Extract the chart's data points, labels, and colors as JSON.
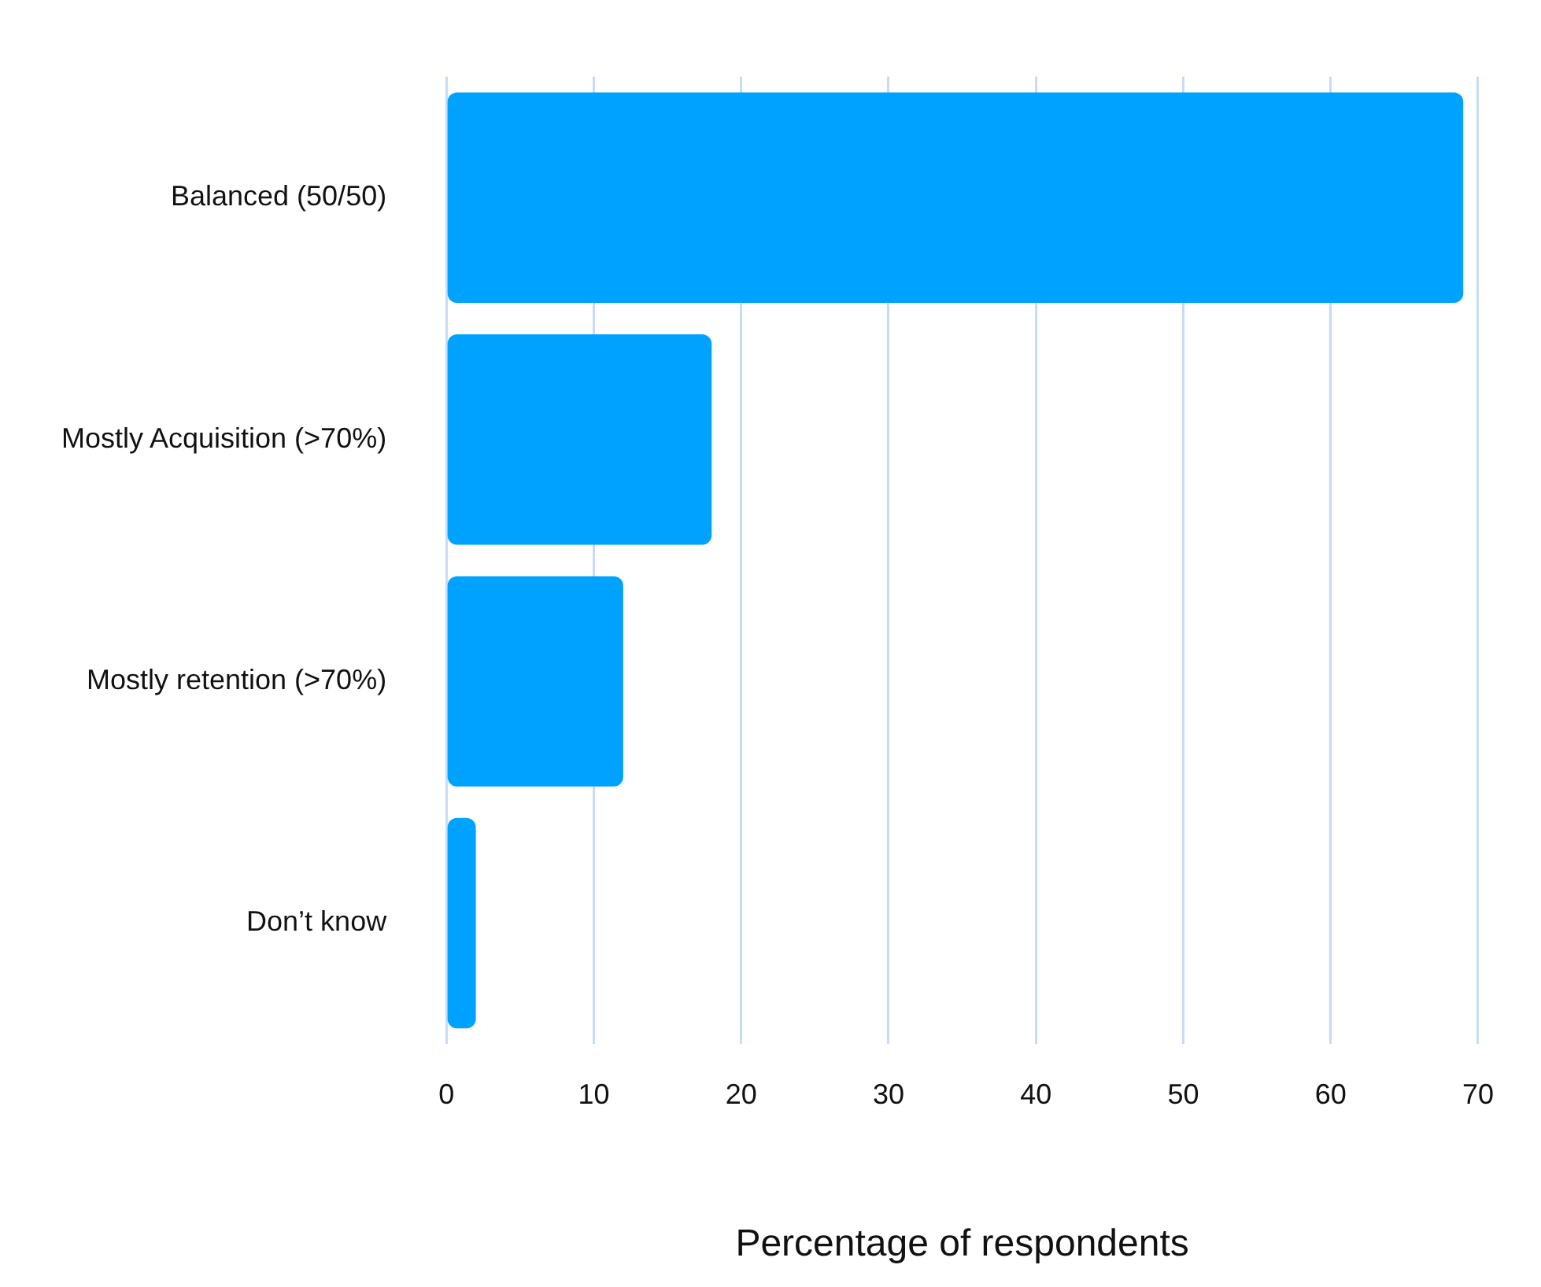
{
  "chart_data": {
    "type": "bar",
    "orientation": "horizontal",
    "xlabel": "Percentage of respondents",
    "categories": [
      "Balanced (50/50)",
      "Mostly Acquisition (>70%)",
      "Mostly retention (>70%)",
      "Don’t know"
    ],
    "values": [
      69,
      18,
      12,
      2
    ],
    "color": "#00a2ff",
    "xlim": [
      0,
      70
    ],
    "xticks": [
      0,
      10,
      20,
      30,
      40,
      50,
      60,
      70
    ],
    "grid": "x"
  }
}
